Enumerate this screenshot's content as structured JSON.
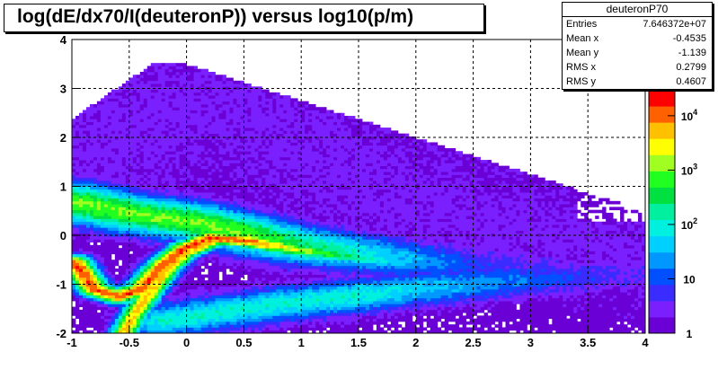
{
  "chart_data": {
    "type": "heatmap",
    "title": "log(dE/dx70/I(deuteronP)) versus log10(p/m)",
    "xlabel": "",
    "ylabel": "",
    "xlim": [
      -1,
      4
    ],
    "ylim": [
      -2,
      4
    ],
    "x_ticks": [
      "-1",
      "-0.5",
      "0",
      "0.5",
      "1",
      "1.5",
      "2",
      "2.5",
      "3",
      "3.5",
      "4"
    ],
    "y_ticks": [
      "-2",
      "-1",
      "0",
      "1",
      "2",
      "3",
      "4"
    ],
    "grid": true,
    "z_scale": "log",
    "z_range": [
      1,
      30000
    ],
    "colorbar_ticks": [
      "1",
      "10",
      "10^2",
      "10^3",
      "10^4"
    ],
    "colorbar_position": "right",
    "stats": {
      "name": "deuteronP70",
      "entries_label": "Entries",
      "entries": "7.646372e+07",
      "mean_x_label": "Mean x",
      "mean_x": "-0.4535",
      "mean_y_label": "Mean y",
      "mean_y": "-1.139",
      "rms_x_label": "RMS x",
      "rms_x": "0.2799",
      "rms_y_label": "RMS y",
      "rms_y": "0.4607"
    },
    "density_features": [
      {
        "name": "upper-band",
        "points": [
          [
            -1,
            0.7
          ],
          [
            -0.5,
            0.45
          ],
          [
            0,
            0.3
          ],
          [
            0.5,
            0.05
          ],
          [
            1,
            -0.2
          ],
          [
            2,
            -0.5
          ],
          [
            3,
            -0.7
          ]
        ],
        "peak_log10_count": 3.0
      },
      {
        "name": "curved-ridge",
        "points": [
          [
            -0.97,
            -0.55
          ],
          [
            -0.8,
            -1.1
          ],
          [
            -0.6,
            -1.25
          ],
          [
            -0.4,
            -1.1
          ],
          [
            -0.2,
            -0.6
          ],
          [
            0,
            -0.25
          ],
          [
            0.2,
            -0.05
          ],
          [
            0.5,
            -0.1
          ],
          [
            1,
            -0.3
          ],
          [
            2,
            -0.6
          ]
        ],
        "peak_log10_count": 4.1
      },
      {
        "name": "diagonal-band",
        "points": [
          [
            -0.55,
            -2
          ],
          [
            -0.45,
            -1.6
          ],
          [
            -0.3,
            -1.1
          ],
          [
            -0.15,
            -0.65
          ],
          [
            0,
            -0.35
          ],
          [
            0.2,
            -0.15
          ]
        ],
        "peak_log10_count": 3.7
      },
      {
        "name": "lower-band",
        "points": [
          [
            -0.2,
            -1.75
          ],
          [
            0.5,
            -1.5
          ],
          [
            1,
            -1.35
          ],
          [
            2,
            -1.1
          ],
          [
            3,
            -0.9
          ],
          [
            4,
            -0.8
          ]
        ],
        "peak_log10_count": 2.0
      },
      {
        "name": "halo",
        "points": [
          [
            -1,
            1.2
          ],
          [
            -0.5,
            2.2
          ],
          [
            0,
            2.8
          ],
          [
            0.5,
            2.5
          ],
          [
            1,
            1.8
          ],
          [
            1.5,
            1.2
          ],
          [
            2,
            0.6
          ],
          [
            3,
            0.0
          ],
          [
            4,
            -0.4
          ]
        ],
        "peak_log10_count": 0.4
      }
    ]
  },
  "colors": {
    "palette": [
      "#6a00d5",
      "#7a20ff",
      "#3a2bff",
      "#0050ff",
      "#0098ff",
      "#00d0ff",
      "#00f0e0",
      "#00f0a0",
      "#00e040",
      "#20ff20",
      "#a0ff20",
      "#ffff00",
      "#ffc000",
      "#ff6000",
      "#ff0000"
    ]
  }
}
